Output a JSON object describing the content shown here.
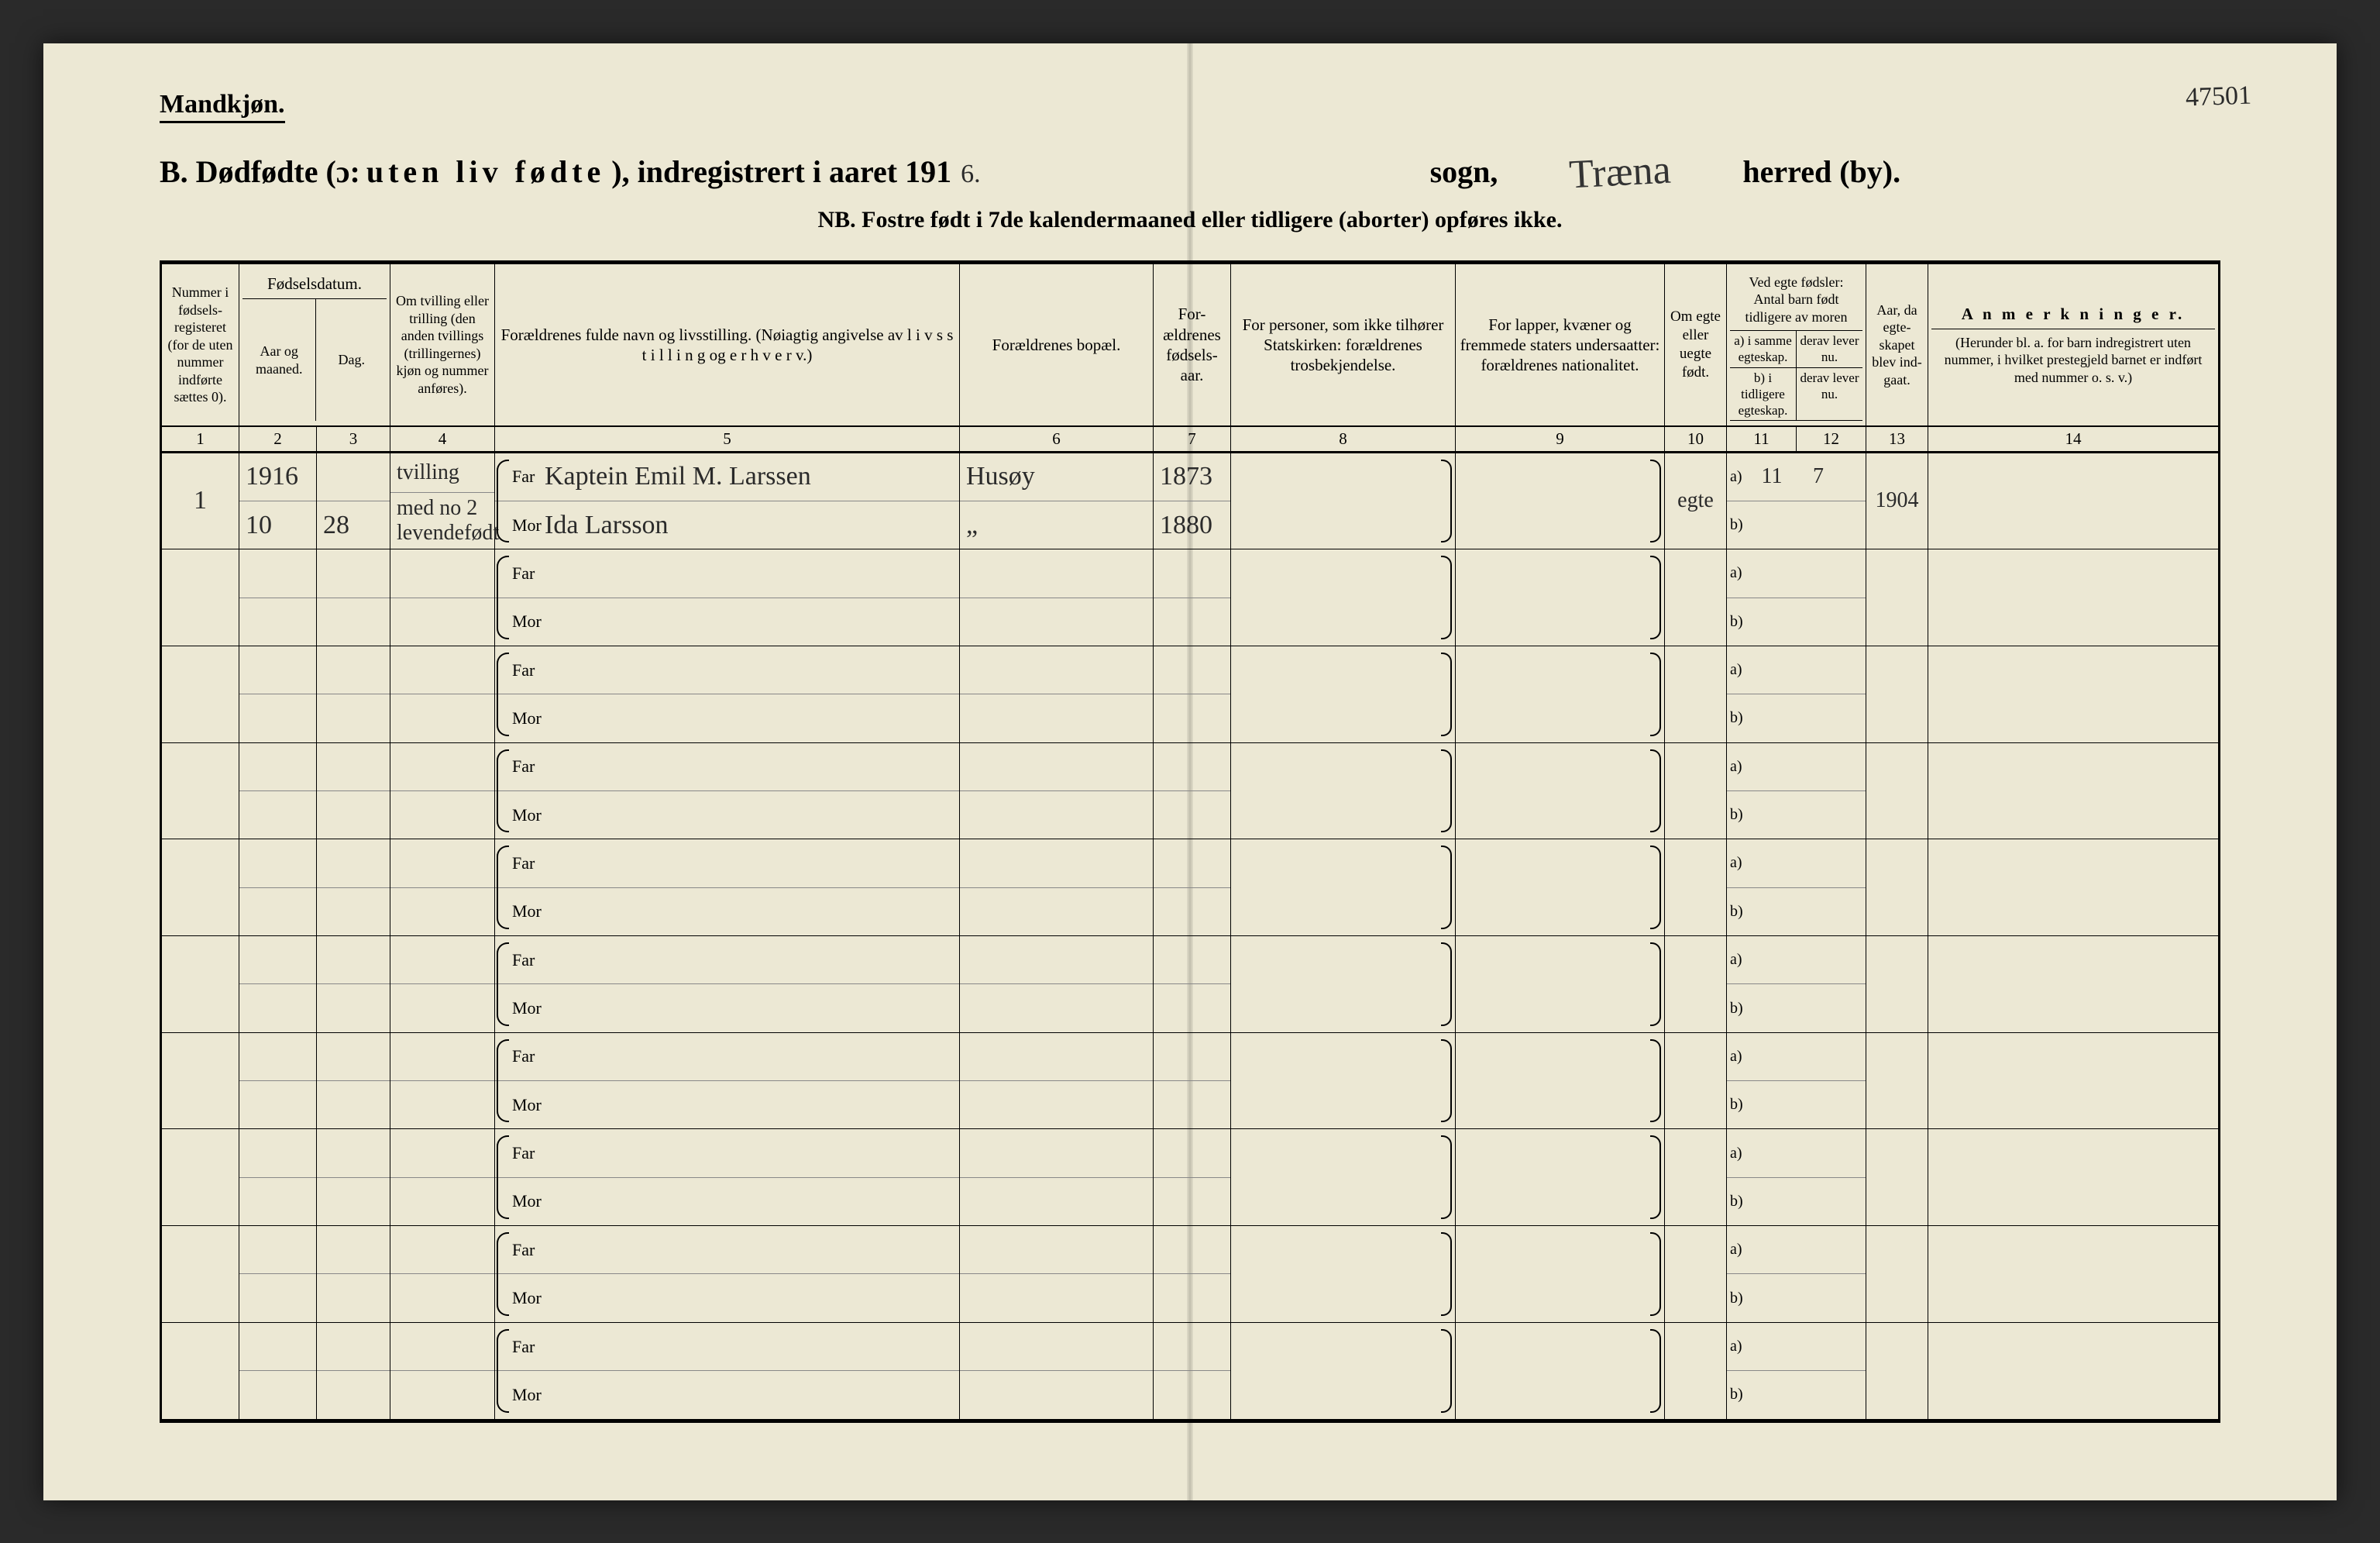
{
  "corner_note": "47501",
  "header": {
    "gender": "Mandkjøn.",
    "title_prefix": "B.  Dødfødte (ɔ: ",
    "title_spaced": "uten liv fødte",
    "title_mid": "), indregistrert i aaret 191",
    "year_suffix": "6.",
    "sogn_label": "sogn,",
    "herred_value": "Træna",
    "herred_label": "herred (by).",
    "nb": "NB.  Fostre født i 7de kalendermaaned eller tidligere (aborter) opføres ikke."
  },
  "columns": {
    "c1": "Nummer i fødsels-registeret (for de uten nummer indførte sættes 0).",
    "c23_top": "Fødselsdatum.",
    "c2": "Aar og maaned.",
    "c3": "Dag.",
    "c4": "Om tvilling eller trilling (den anden tvillings (trillingernes) kjøn og nummer anføres).",
    "c5": "Forældrenes fulde navn og livsstilling.\n(Nøiagtig angivelse av  l i v s s t i l l i n g  og  e r h v e r v.)",
    "c6": "Forældrenes bopæl.",
    "c7": "For-ældrenes fødsels-aar.",
    "c8": "For personer, som ikke tilhører Statskirken:\nforældrenes trosbekjendelse.",
    "c9": "For lapper, kvæner og fremmede staters undersaatter:\nforældrenes nationalitet.",
    "c10": "Om egte eller uegte født.",
    "c1112_top": "Ved egte fødsler:\nAntal barn født tidligere av moren",
    "c11a": "a) i samme egteskap.",
    "c11b": "b) i tidligere egteskap.",
    "c12a": "derav lever nu.",
    "c12b": "derav lever nu.",
    "c13": "Aar, da egte-skapet blev ind-gaat.",
    "c14_top": "A n m e r k n i n g e r.",
    "c14_sub": "(Herunder bl. a. for barn indregistrert uten nummer, i hvilket prestegjeld barnet er indført med nummer o. s. v.)"
  },
  "colnums": [
    "1",
    "2",
    "3",
    "4",
    "5",
    "6",
    "7",
    "8",
    "9",
    "10",
    "11",
    "12",
    "13",
    "14"
  ],
  "row_labels": {
    "far": "Far",
    "mor": "Mor",
    "a": "a)",
    "b": "b)"
  },
  "entries": [
    {
      "num": "1",
      "aar_maaned_top": "1916",
      "aar_maaned_bot": "10",
      "dag": "28",
      "tvilling_top": "tvilling",
      "tvilling_bot": "med no 2 levendefødt",
      "far_navn": "Kaptein Emil M. Larssen",
      "mor_navn": "Ida Larsson",
      "bopael_far": "Husøy",
      "bopael_mor": "„",
      "far_aar": "1873",
      "mor_aar": "1880",
      "c8": "",
      "c9": "",
      "egte": "egte",
      "c11a": "11",
      "c12a": "7",
      "c11b": "",
      "c12b": "",
      "aar_egteskap": "1904",
      "anm": ""
    }
  ],
  "blank_rows": 9,
  "colors": {
    "paper": "#ece8d4",
    "ink": "#1a1a1a",
    "hand": "#2a2a2a"
  }
}
